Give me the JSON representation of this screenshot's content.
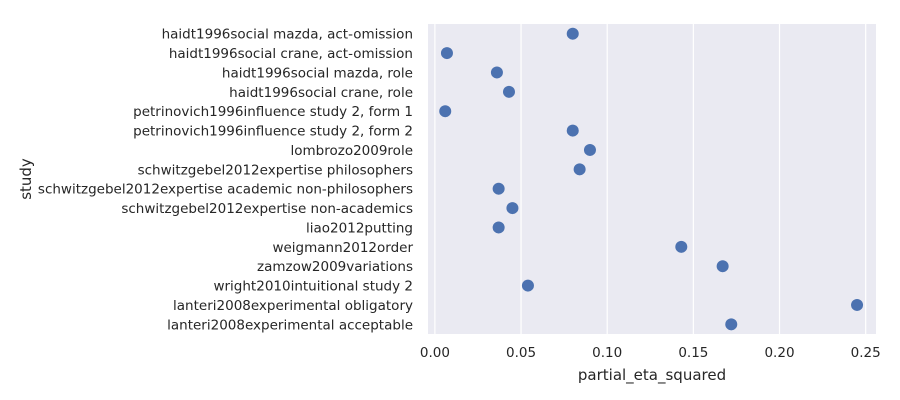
{
  "chart_data": {
    "type": "scatter",
    "xlabel": "partial_eta_squared",
    "ylabel": "study",
    "xlim": [
      -0.004,
      0.256
    ],
    "x_ticks": [
      0.0,
      0.05,
      0.1,
      0.15,
      0.2,
      0.25
    ],
    "x_tick_labels": [
      "0.00",
      "0.05",
      "0.10",
      "0.15",
      "0.20",
      "0.25"
    ],
    "grid": true,
    "background_color": "#eaeaf2",
    "grid_color": "#ffffff",
    "point_color": "#4c72b0",
    "categories": [
      "haidt1996social mazda, act-omission",
      "haidt1996social crane, act-omission",
      "haidt1996social mazda, role",
      "haidt1996social crane, role",
      "petrinovich1996influence study 2, form 1",
      "petrinovich1996influence study 2, form 2",
      "lombrozo2009role",
      "schwitzgebel2012expertise philosophers",
      "schwitzgebel2012expertise academic non-philosophers",
      "schwitzgebel2012expertise non-academics",
      "liao2012putting",
      "weigmann2012order",
      "zamzow2009variations",
      "wright2010intuitional study 2",
      "lanteri2008experimental obligatory",
      "lanteri2008experimental acceptable"
    ],
    "values": [
      0.08,
      0.007,
      0.036,
      0.043,
      0.006,
      0.08,
      0.09,
      0.084,
      0.037,
      0.045,
      0.037,
      0.143,
      0.167,
      0.054,
      0.245,
      0.172
    ]
  }
}
